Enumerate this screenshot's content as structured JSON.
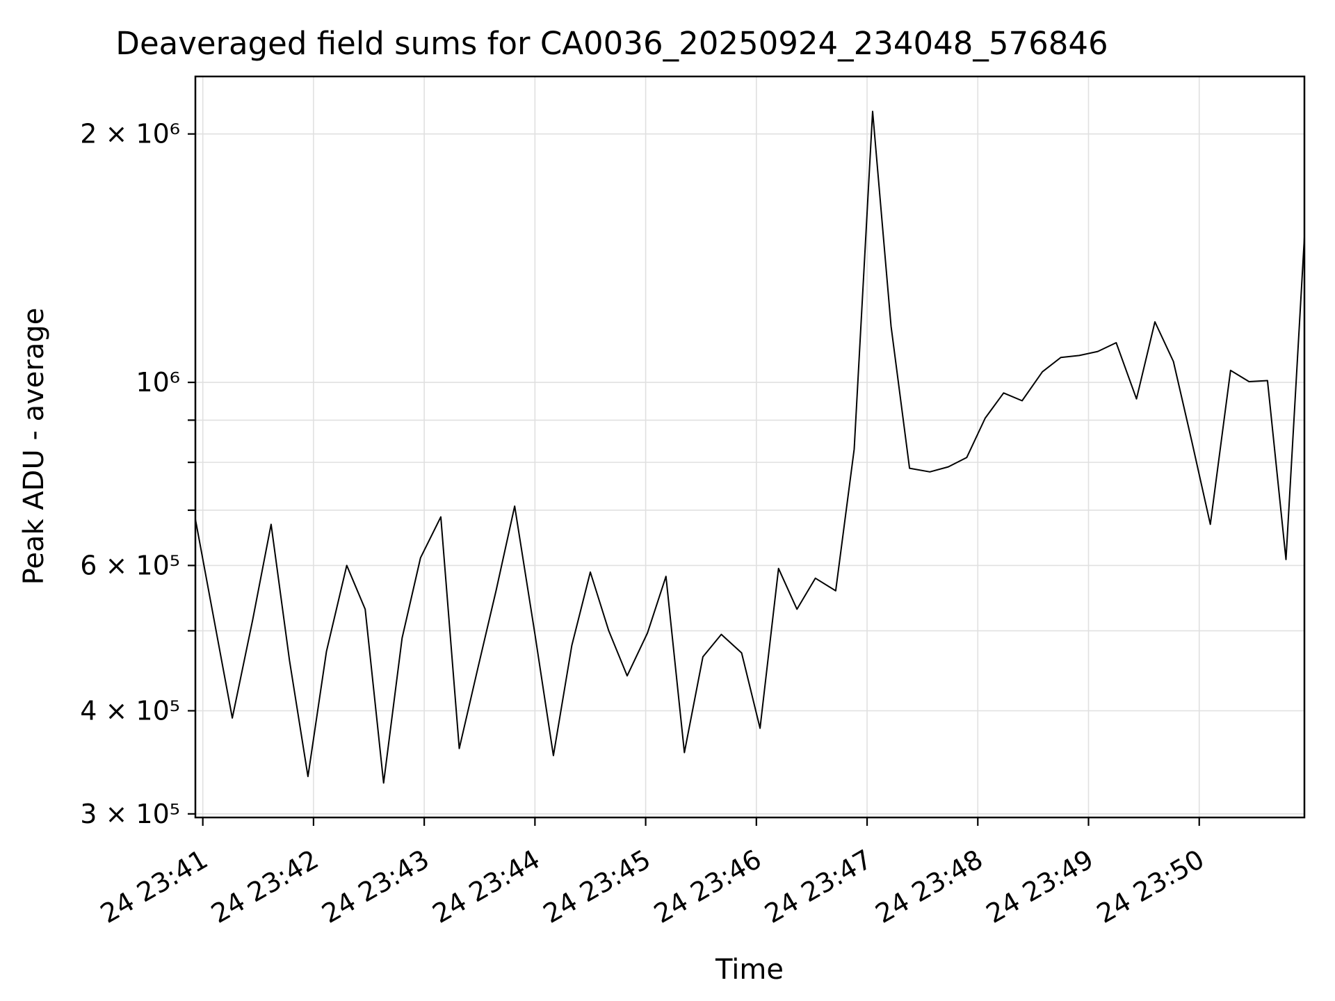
{
  "chart_data": {
    "type": "line",
    "title": "Deaveraged field sums for CA0036_20250924_234048_576846",
    "xlabel": "Time",
    "ylabel": "Peak ADU - average",
    "yscale": "log",
    "grid": "both",
    "legend": "none",
    "background_color": "#ffffff",
    "line_color": "#000000",
    "line_width": 2,
    "grid_color": "#e0e0e0",
    "spine_color": "#000000",
    "ylim": [
      297000,
      2348000
    ],
    "xlim_minutes": [
      40.933,
      50.95
    ],
    "x_ticks": [
      {
        "minute": 41,
        "label": "24 23:41"
      },
      {
        "minute": 42,
        "label": "24 23:42"
      },
      {
        "minute": 43,
        "label": "24 23:43"
      },
      {
        "minute": 44,
        "label": "24 23:44"
      },
      {
        "minute": 45,
        "label": "24 23:45"
      },
      {
        "minute": 46,
        "label": "24 23:46"
      },
      {
        "minute": 47,
        "label": "24 23:47"
      },
      {
        "minute": 48,
        "label": "24 23:48"
      },
      {
        "minute": 49,
        "label": "24 23:49"
      },
      {
        "minute": 50,
        "label": "24 23:50"
      }
    ],
    "y_ticks": [
      {
        "value": 300000,
        "label": "3 × 10⁵"
      },
      {
        "value": 400000,
        "label": "4 × 10⁵"
      },
      {
        "value": 500000,
        "label": ""
      },
      {
        "value": 600000,
        "label": "6 × 10⁵"
      },
      {
        "value": 700000,
        "label": ""
      },
      {
        "value": 800000,
        "label": ""
      },
      {
        "value": 900000,
        "label": ""
      },
      {
        "value": 1000000,
        "label": "10⁶"
      },
      {
        "value": 2000000,
        "label": "2 × 10⁶"
      }
    ],
    "series": [
      {
        "name": "Peak ADU - average",
        "points": [
          {
            "t": "23:40:56",
            "v": 682000
          },
          {
            "t": "23:41:06",
            "v": 517000
          },
          {
            "t": "23:41:16",
            "v": 392000
          },
          {
            "t": "23:41:27",
            "v": 515000
          },
          {
            "t": "23:41:37",
            "v": 673000
          },
          {
            "t": "23:41:47",
            "v": 460000
          },
          {
            "t": "23:41:57",
            "v": 333000
          },
          {
            "t": "23:42:07",
            "v": 472000
          },
          {
            "t": "23:42:18",
            "v": 600000
          },
          {
            "t": "23:42:28",
            "v": 531000
          },
          {
            "t": "23:42:38",
            "v": 327000
          },
          {
            "t": "23:42:48",
            "v": 490000
          },
          {
            "t": "23:42:58",
            "v": 613000
          },
          {
            "t": "23:43:09",
            "v": 687000
          },
          {
            "t": "23:43:19",
            "v": 360000
          },
          {
            "t": "23:43:29",
            "v": 450000
          },
          {
            "t": "23:43:39",
            "v": 560000
          },
          {
            "t": "23:43:49",
            "v": 708000
          },
          {
            "t": "23:44:00",
            "v": 495000
          },
          {
            "t": "23:44:10",
            "v": 353000
          },
          {
            "t": "23:44:20",
            "v": 480000
          },
          {
            "t": "23:44:30",
            "v": 589000
          },
          {
            "t": "23:44:40",
            "v": 500000
          },
          {
            "t": "23:44:50",
            "v": 441000
          },
          {
            "t": "23:45:01",
            "v": 497000
          },
          {
            "t": "23:45:11",
            "v": 582000
          },
          {
            "t": "23:45:21",
            "v": 356000
          },
          {
            "t": "23:45:31",
            "v": 465000
          },
          {
            "t": "23:45:41",
            "v": 495000
          },
          {
            "t": "23:45:52",
            "v": 470000
          },
          {
            "t": "23:46:02",
            "v": 381000
          },
          {
            "t": "23:46:12",
            "v": 595000
          },
          {
            "t": "23:46:22",
            "v": 531000
          },
          {
            "t": "23:46:32",
            "v": 579000
          },
          {
            "t": "23:46:43",
            "v": 559000
          },
          {
            "t": "23:46:53",
            "v": 830000
          },
          {
            "t": "23:47:03",
            "v": 2130000
          },
          {
            "t": "23:47:13",
            "v": 1170000
          },
          {
            "t": "23:47:23",
            "v": 787000
          },
          {
            "t": "23:47:34",
            "v": 779000
          },
          {
            "t": "23:47:44",
            "v": 790000
          },
          {
            "t": "23:47:54",
            "v": 811000
          },
          {
            "t": "23:48:04",
            "v": 905000
          },
          {
            "t": "23:48:14",
            "v": 971000
          },
          {
            "t": "23:48:24",
            "v": 950000
          },
          {
            "t": "23:48:35",
            "v": 1030000
          },
          {
            "t": "23:48:45",
            "v": 1072000
          },
          {
            "t": "23:48:55",
            "v": 1078000
          },
          {
            "t": "23:49:05",
            "v": 1090000
          },
          {
            "t": "23:49:15",
            "v": 1117000
          },
          {
            "t": "23:49:26",
            "v": 955000
          },
          {
            "t": "23:49:36",
            "v": 1184000
          },
          {
            "t": "23:49:46",
            "v": 1060000
          },
          {
            "t": "23:49:56",
            "v": 848000
          },
          {
            "t": "23:50:06",
            "v": 673000
          },
          {
            "t": "23:50:17",
            "v": 1034000
          },
          {
            "t": "23:50:27",
            "v": 1002000
          },
          {
            "t": "23:50:37",
            "v": 1005000
          },
          {
            "t": "23:50:47",
            "v": 610000
          },
          {
            "t": "23:50:57",
            "v": 1500000
          }
        ]
      }
    ]
  }
}
